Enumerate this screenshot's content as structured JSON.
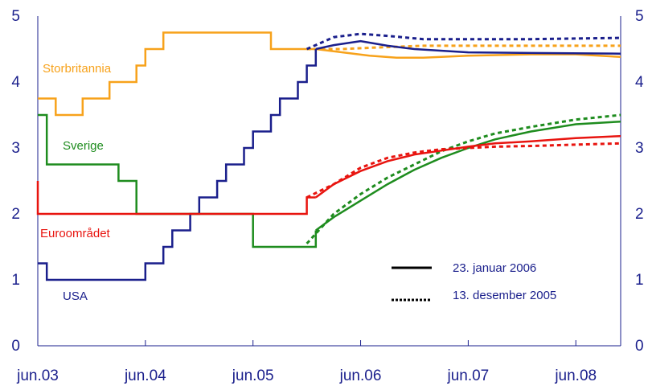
{
  "chart_data": {
    "type": "line",
    "title": "",
    "xlabel": "",
    "ylabel": "",
    "x_range": [
      "2003-06",
      "2008-11"
    ],
    "ylim": [
      0,
      5
    ],
    "y_ticks": [
      "0",
      "1",
      "2",
      "3",
      "4",
      "5"
    ],
    "x_ticks": [
      {
        "date": "2003-06",
        "label": "jun.03"
      },
      {
        "date": "2004-06",
        "label": "jun.04"
      },
      {
        "date": "2005-06",
        "label": "jun.05"
      },
      {
        "date": "2006-06",
        "label": "jun.06"
      },
      {
        "date": "2007-06",
        "label": "jun.07"
      },
      {
        "date": "2008-06",
        "label": "jun.08"
      }
    ],
    "grid": false,
    "dual_y_axis": true,
    "legend": [
      {
        "label": "23. januar 2006",
        "style": "solid"
      },
      {
        "label": "13. desember 2005",
        "style": "dotted"
      }
    ],
    "series": [
      {
        "name": "Storbritannia",
        "color": "#f7a21b",
        "step": true,
        "history": [
          [
            "2003-06",
            3.75
          ],
          [
            "2003-08",
            3.5
          ],
          [
            "2003-11",
            3.75
          ],
          [
            "2004-02",
            4.0
          ],
          [
            "2004-05",
            4.25
          ],
          [
            "2004-06",
            4.5
          ],
          [
            "2004-08",
            4.75
          ],
          [
            "2005-08",
            4.5
          ],
          [
            "2006-01",
            4.5
          ]
        ],
        "forecast_solid": [
          [
            "2006-01",
            4.5
          ],
          [
            "2006-04",
            4.45
          ],
          [
            "2006-07",
            4.4
          ],
          [
            "2006-10",
            4.37
          ],
          [
            "2007-01",
            4.37
          ],
          [
            "2007-06",
            4.4
          ],
          [
            "2008-01",
            4.42
          ],
          [
            "2008-06",
            4.42
          ],
          [
            "2008-11",
            4.38
          ]
        ],
        "forecast_dotted": [
          [
            "2005-12",
            4.5
          ],
          [
            "2006-04",
            4.5
          ],
          [
            "2006-07",
            4.52
          ],
          [
            "2007-01",
            4.55
          ],
          [
            "2007-06",
            4.55
          ],
          [
            "2008-01",
            4.55
          ],
          [
            "2008-11",
            4.55
          ]
        ]
      },
      {
        "name": "USA",
        "color": "#1a1f8c",
        "step": true,
        "history": [
          [
            "2003-06",
            1.25
          ],
          [
            "2003-07",
            1.0
          ],
          [
            "2004-06",
            1.25
          ],
          [
            "2004-08",
            1.5
          ],
          [
            "2004-09",
            1.75
          ],
          [
            "2004-11",
            2.0
          ],
          [
            "2004-12",
            2.25
          ],
          [
            "2005-02",
            2.5
          ],
          [
            "2005-03",
            2.75
          ],
          [
            "2005-05",
            3.0
          ],
          [
            "2005-06",
            3.25
          ],
          [
            "2005-08",
            3.5
          ],
          [
            "2005-09",
            3.75
          ],
          [
            "2005-11",
            4.0
          ],
          [
            "2005-12",
            4.25
          ],
          [
            "2006-01",
            4.5
          ]
        ],
        "forecast_solid": [
          [
            "2006-01",
            4.5
          ],
          [
            "2006-03",
            4.56
          ],
          [
            "2006-06",
            4.62
          ],
          [
            "2006-09",
            4.55
          ],
          [
            "2006-12",
            4.5
          ],
          [
            "2007-06",
            4.45
          ],
          [
            "2008-01",
            4.44
          ],
          [
            "2008-11",
            4.43
          ]
        ],
        "forecast_dotted": [
          [
            "2005-12",
            4.5
          ],
          [
            "2006-03",
            4.68
          ],
          [
            "2006-06",
            4.73
          ],
          [
            "2006-09",
            4.7
          ],
          [
            "2007-01",
            4.65
          ],
          [
            "2007-06",
            4.65
          ],
          [
            "2008-01",
            4.65
          ],
          [
            "2008-11",
            4.67
          ]
        ]
      },
      {
        "name": "Sverige",
        "color": "#1e8c1e",
        "step": true,
        "history": [
          [
            "2003-06",
            3.5
          ],
          [
            "2003-07",
            3.0
          ],
          [
            "2003-07",
            2.75
          ],
          [
            "2004-03",
            2.5
          ],
          [
            "2004-05",
            2.0
          ],
          [
            "2005-06",
            1.5
          ],
          [
            "2006-01",
            1.75
          ]
        ],
        "forecast_solid": [
          [
            "2006-01",
            1.75
          ],
          [
            "2006-03",
            1.95
          ],
          [
            "2006-06",
            2.2
          ],
          [
            "2006-09",
            2.45
          ],
          [
            "2006-12",
            2.67
          ],
          [
            "2007-03",
            2.85
          ],
          [
            "2007-06",
            3.0
          ],
          [
            "2007-09",
            3.13
          ],
          [
            "2008-01",
            3.25
          ],
          [
            "2008-06",
            3.36
          ],
          [
            "2008-11",
            3.4
          ]
        ],
        "forecast_dotted": [
          [
            "2005-12",
            1.55
          ],
          [
            "2006-03",
            2.0
          ],
          [
            "2006-06",
            2.3
          ],
          [
            "2006-09",
            2.55
          ],
          [
            "2006-12",
            2.75
          ],
          [
            "2007-03",
            2.95
          ],
          [
            "2007-06",
            3.1
          ],
          [
            "2007-09",
            3.22
          ],
          [
            "2008-01",
            3.32
          ],
          [
            "2008-06",
            3.43
          ],
          [
            "2008-11",
            3.5
          ]
        ]
      },
      {
        "name": "Euroområdet",
        "color": "#e8140f",
        "step": true,
        "history": [
          [
            "2003-06",
            2.5
          ],
          [
            "2003-06",
            2.0
          ],
          [
            "2005-12",
            2.25
          ],
          [
            "2006-01",
            2.25
          ]
        ],
        "forecast_solid": [
          [
            "2006-01",
            2.25
          ],
          [
            "2006-03",
            2.45
          ],
          [
            "2006-06",
            2.65
          ],
          [
            "2006-09",
            2.8
          ],
          [
            "2006-12",
            2.9
          ],
          [
            "2007-03",
            2.96
          ],
          [
            "2007-06",
            3.02
          ],
          [
            "2007-09",
            3.07
          ],
          [
            "2008-01",
            3.1
          ],
          [
            "2008-06",
            3.15
          ],
          [
            "2008-11",
            3.18
          ]
        ],
        "forecast_dotted": [
          [
            "2005-12",
            2.25
          ],
          [
            "2006-03",
            2.45
          ],
          [
            "2006-06",
            2.7
          ],
          [
            "2006-09",
            2.85
          ],
          [
            "2006-12",
            2.93
          ],
          [
            "2007-03",
            2.98
          ],
          [
            "2007-06",
            3.0
          ],
          [
            "2007-09",
            3.02
          ],
          [
            "2008-01",
            3.03
          ],
          [
            "2008-06",
            3.05
          ],
          [
            "2008-11",
            3.07
          ]
        ]
      }
    ]
  }
}
